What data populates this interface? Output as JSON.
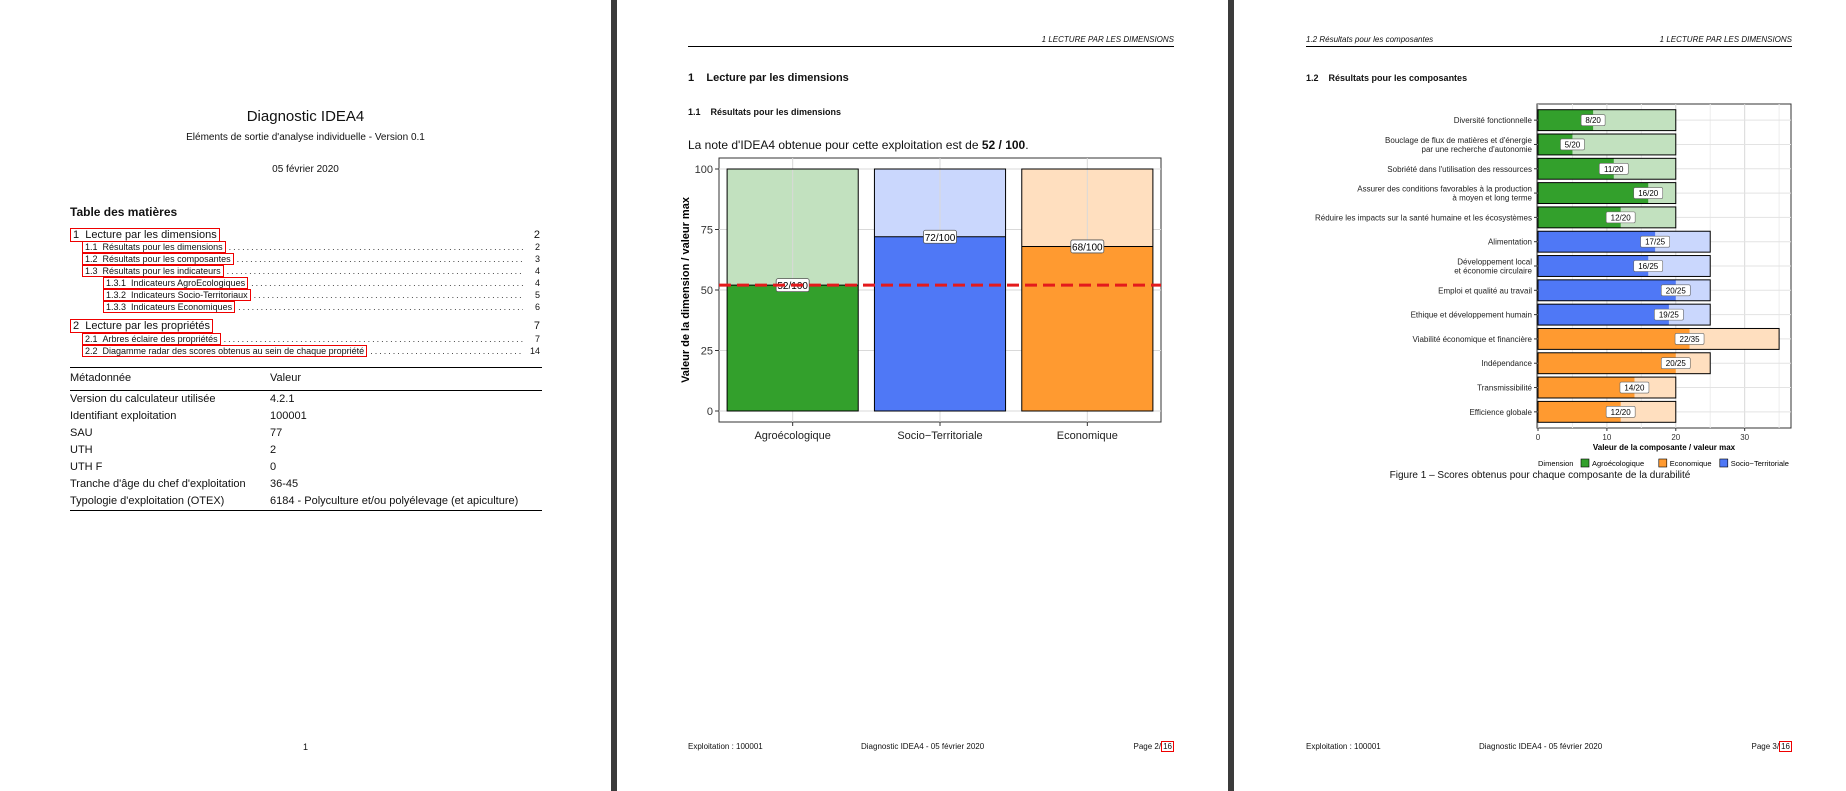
{
  "page1": {
    "title": "Diagnostic IDEA4",
    "subtitle": "Eléments de sortie d'analyse individuelle - Version 0.1",
    "date": "05 février 2020",
    "toc_heading": "Table des matières",
    "toc": [
      {
        "num": "1",
        "label": "Lecture par les dimensions",
        "page": "2",
        "level": 1
      },
      {
        "num": "1.1",
        "label": "Résultats pour les dimensions",
        "page": "2",
        "level": 2
      },
      {
        "num": "1.2",
        "label": "Résultats pour les composantes",
        "page": "3",
        "level": 2
      },
      {
        "num": "1.3",
        "label": "Résultats pour les indicateurs",
        "page": "4",
        "level": 2
      },
      {
        "num": "1.3.1",
        "label": "Indicateurs AgroEcologiques",
        "page": "4",
        "level": 3
      },
      {
        "num": "1.3.2",
        "label": "Indicateurs Socio-Territoriaux",
        "page": "5",
        "level": 3
      },
      {
        "num": "1.3.3",
        "label": "Indicateurs Economiques",
        "page": "6",
        "level": 3
      },
      {
        "num": "2",
        "label": "Lecture par les propriétés",
        "page": "7",
        "level": 1
      },
      {
        "num": "2.1",
        "label": "Arbres éclaire des propriétés",
        "page": "7",
        "level": 2
      },
      {
        "num": "2.2",
        "label": "Diagamme radar des scores obtenus au sein de chaque propriété",
        "page": "14",
        "level": 2
      }
    ],
    "meta_headers": [
      "Métadonnée",
      "Valeur"
    ],
    "meta_rows": [
      [
        "Version du calculateur utilisée",
        "4.2.1"
      ],
      [
        "Identifiant exploitation",
        "100001"
      ],
      [
        "SAU",
        "77"
      ],
      [
        "UTH",
        "2"
      ],
      [
        "UTH F",
        "0"
      ],
      [
        "Tranche d'âge du chef d'exploitation",
        "36-45"
      ],
      [
        "Typologie d'exploitation (OTEX)",
        "6184 - Polyculture et/ou polyélevage (et apiculture)"
      ]
    ],
    "page_number": "1"
  },
  "page2": {
    "running_header": "1   LECTURE PAR LES DIMENSIONS",
    "section_num": "1",
    "section_title": "Lecture par les dimensions",
    "subsection_num": "1.1",
    "subsection_title": "Résultats pour les dimensions",
    "note_prefix": "La note d'IDEA4 obtenue pour cette exploitation est de ",
    "note_value": "52 / 100",
    "note_suffix": ".",
    "footer_left": "Exploitation : 100001",
    "footer_center": "Diagnostic IDEA4 - 05 février 2020",
    "footer_right_prefix": "Page 2/",
    "footer_right_total": "16"
  },
  "page3": {
    "running_header_left": "1.2   Résultats pour les composantes",
    "running_header_right": "1   LECTURE PAR LES DIMENSIONS",
    "subsection_num": "1.2",
    "subsection_title": "Résultats pour les composantes",
    "figure_caption": "Figure 1 – Scores obtenus pour chaque composante de la durabilité",
    "footer_left": "Exploitation : 100001",
    "footer_center": "Diagnostic IDEA4 - 05 février 2020",
    "footer_right_prefix": "Page 3/",
    "footer_right_total": "16"
  },
  "chart_data": [
    {
      "type": "bar",
      "categories": [
        "Agroécologique",
        "Socio−Territoriale",
        "Economique"
      ],
      "values": [
        52,
        72,
        68
      ],
      "max_values": [
        100,
        100,
        100
      ],
      "labels": [
        "52/100",
        "72/100",
        "68/100"
      ],
      "ylabel": "Valeur de la dimension / valeur max",
      "xlabel": "",
      "ylim": [
        0,
        100
      ],
      "yticks": [
        0,
        25,
        50,
        75,
        100
      ],
      "reference_line": 52,
      "colors": {
        "Agroécologique": "#33a02c",
        "Socio−Territoriale": "#4f78f6",
        "Economique": "#ff9a30"
      },
      "max_colors": {
        "Agroécologique": "#c2e1bf",
        "Socio−Territoriale": "#cad7fd",
        "Economique": "#ffdfbf"
      },
      "reference_color": "#e41a1c",
      "grid": true
    },
    {
      "type": "bar",
      "orientation": "horizontal",
      "categories": [
        "Diversité fonctionnelle",
        "Bouclage de flux de matières et d'énergie\npar une recherche d'autonomie",
        "Sobriété dans l'utilisation des ressources",
        "Assurer des conditions favorables à la production\nà moyen et long terme",
        "Réduire les impacts sur la santé humaine et les écosystèmes",
        "Alimentation",
        "Développement local\net économie circulaire",
        "Emploi et qualité au travail",
        "Ethique et développement humain",
        "Viabilité économique et financière",
        "Indépendance",
        "Transmissibilité",
        "Efficience globale"
      ],
      "values": [
        8,
        5,
        11,
        16,
        12,
        17,
        16,
        20,
        19,
        22,
        20,
        14,
        12
      ],
      "max_values": [
        20,
        20,
        20,
        20,
        20,
        25,
        25,
        25,
        25,
        35,
        25,
        20,
        20
      ],
      "labels": [
        "8/20",
        "5/20",
        "11/20",
        "16/20",
        "12/20",
        "17/25",
        "16/25",
        "20/25",
        "19/25",
        "22/35",
        "20/25",
        "14/20",
        "12/20"
      ],
      "dimension": [
        "Agroécologique",
        "Agroécologique",
        "Agroécologique",
        "Agroécologique",
        "Agroécologique",
        "Socio−Territoriale",
        "Socio−Territoriale",
        "Socio−Territoriale",
        "Socio−Territoriale",
        "Economique",
        "Economique",
        "Economique",
        "Economique"
      ],
      "xlabel": "Valeur de la composante / valeur max",
      "xlim": [
        0,
        36
      ],
      "xticks": [
        0,
        10,
        20,
        30
      ],
      "legend_title": "Dimension",
      "legend": [
        "Agroécologique",
        "Economique",
        "Socio−Territoriale"
      ],
      "legend_position": "bottom",
      "grid": true
    }
  ]
}
